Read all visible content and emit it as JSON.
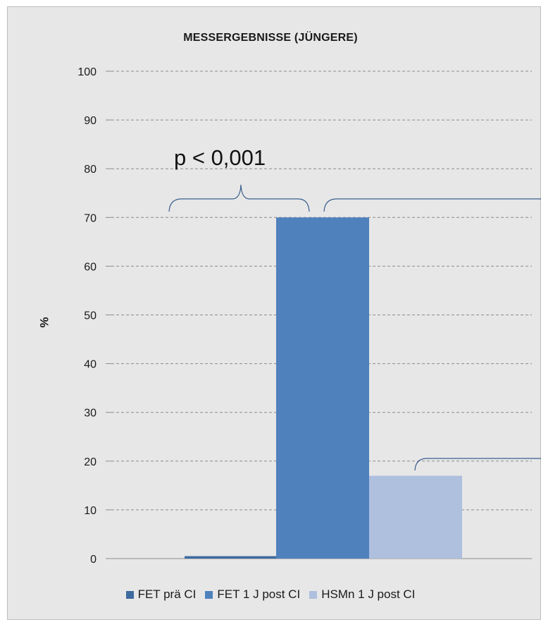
{
  "chart_data": {
    "type": "bar",
    "title": "Messergebnisse (Jüngere)",
    "title_display": "MESSERGEBNISSE (JÜNGERE)",
    "ylabel": "%",
    "xlabel": "",
    "ylim": [
      0,
      100
    ],
    "yticks": [
      0,
      10,
      20,
      30,
      40,
      50,
      60,
      70,
      80,
      90,
      100
    ],
    "grid": true,
    "legend_position": "bottom",
    "series": [
      {
        "name": "FET prä CI",
        "value": 0.5,
        "color": "#3e6aa0"
      },
      {
        "name": "FET 1 J post CI",
        "value": 70,
        "color": "#4f81bd"
      },
      {
        "name": "HSMn 1 J post CI",
        "value": 17,
        "color": "#afbfde"
      }
    ],
    "annotations": [
      {
        "text": "p < 0,001"
      }
    ]
  }
}
